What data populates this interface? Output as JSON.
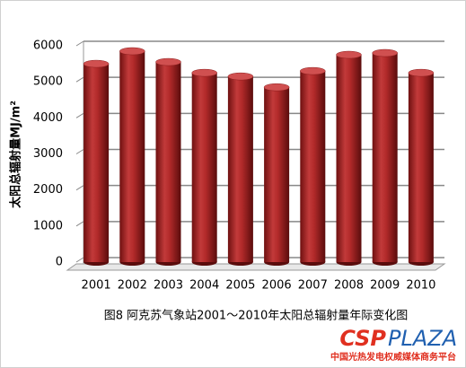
{
  "chart_data": {
    "type": "bar",
    "y_label": "太阳总辐射量MJ/m²",
    "caption": "图8 阿克苏气象站2001～2010年太阳总辐射量年际变化图",
    "brand_left": "CSP",
    "brand_right": "PLAZA",
    "brand_tagline": "中国光热发电权威媒体商务平台",
    "categories": [
      "2001",
      "2002",
      "2003",
      "2004",
      "2005",
      "2006",
      "2007",
      "2008",
      "2009",
      "2010"
    ],
    "values": [
      5500,
      5850,
      5550,
      5250,
      5150,
      4850,
      5300,
      5750,
      5800,
      5250
    ],
    "color": "#b22a2a",
    "ylim": [
      0,
      6000
    ],
    "yticks": [
      0,
      1000,
      2000,
      3000,
      4000,
      5000,
      6000
    ],
    "grid": true
  }
}
